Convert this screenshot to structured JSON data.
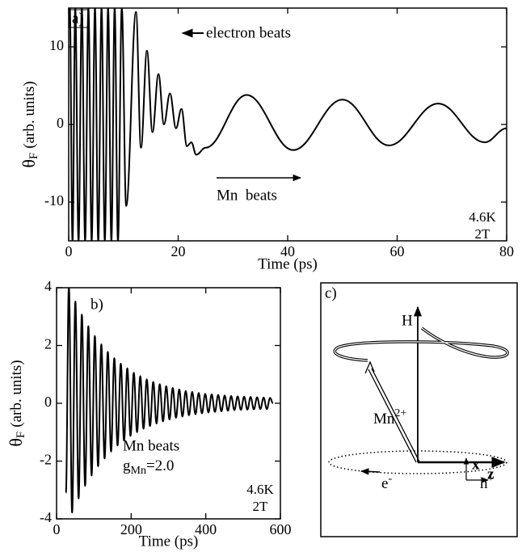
{
  "chart_data": [
    {
      "type": "line",
      "label": "a)",
      "color": "#000000",
      "xlabel": "Time (ps)",
      "ylabel": "θ",
      "ylabel_sub": "F",
      "ylabel_unit": "(arb. units)",
      "xlim": [
        0,
        80
      ],
      "ylim": [
        -15,
        15
      ],
      "xticks": [
        0,
        20,
        40,
        60,
        80
      ],
      "yticks": [
        -10,
        0,
        10
      ],
      "x": [
        0.2,
        0.7,
        1.2,
        1.8,
        2.4,
        3.0,
        3.6,
        4.2,
        4.8,
        5.4,
        6.0,
        6.6,
        7.2,
        7.8,
        8.4,
        9.0,
        9.7,
        10.5,
        12.3,
        13.2,
        14.3,
        15.3,
        16.4,
        17.4,
        18.5,
        19.6,
        20.6,
        21.6,
        22.4,
        23.3,
        25,
        32.5,
        41,
        50,
        58.5,
        67.5,
        76,
        80
      ],
      "values": [
        15,
        -15,
        15,
        -15,
        15,
        -15,
        15,
        -15,
        15,
        -15,
        15,
        -15,
        15,
        -15,
        15,
        -15,
        15,
        -10.5,
        14.5,
        -3,
        9.5,
        -1,
        6.5,
        0,
        4,
        -0.5,
        2,
        -2.8,
        -2.3,
        -3.9,
        -3,
        3.8,
        -3.3,
        3.2,
        -2.7,
        2.7,
        -2.3,
        -0.5
      ],
      "annotations": {
        "electron": "electron beats",
        "mn": "Mn  beats",
        "temp": "4.6K",
        "field": "2T"
      }
    },
    {
      "type": "line",
      "label": "b)",
      "color": "#000000",
      "xlabel": "Time (ps)",
      "ylabel": "θ",
      "ylabel_sub": "F",
      "ylabel_unit": "(arb. units)",
      "xlim": [
        0,
        600
      ],
      "ylim": [
        -4,
        4
      ],
      "xticks": [
        0,
        200,
        400,
        600
      ],
      "yticks": [
        -4,
        -2,
        0,
        2,
        4
      ],
      "x": [
        25,
        33,
        41.7,
        50.4,
        59.1,
        67.8,
        76.5,
        85.2,
        93.9,
        102.6,
        111.3,
        120,
        128.7,
        137.4,
        146.1,
        154.8,
        163.5,
        172.2,
        180.9,
        189.6,
        198.3,
        207,
        215.7,
        224.4,
        233.1,
        241.8,
        250.5,
        259.2,
        267.9,
        276.6,
        285.3,
        294,
        302.7,
        311.4,
        320.1,
        328.8,
        337.5,
        346.2,
        354.9,
        363.6,
        372.3,
        381,
        389.7,
        398.4,
        407.1,
        415.8,
        424.5,
        433.2,
        441.9,
        450.6,
        459.3,
        468,
        476.7,
        485.4,
        494.1,
        502.8,
        511.5,
        520.2,
        528.9,
        537.6,
        546.3,
        555,
        563.7,
        572.4,
        580
      ],
      "values": [
        -3.1,
        4.05,
        -3.78,
        3.52,
        -3.29,
        3.07,
        -2.86,
        2.67,
        -2.5,
        2.33,
        -2.18,
        2.04,
        -1.91,
        1.78,
        -1.67,
        1.56,
        -1.46,
        1.37,
        -1.29,
        1.21,
        -1.13,
        1.06,
        -1,
        0.94,
        -0.88,
        0.83,
        -0.79,
        0.74,
        -0.7,
        0.66,
        -0.63,
        0.59,
        -0.56,
        0.53,
        -0.5,
        0.48,
        -0.46,
        0.43,
        -0.42,
        0.4,
        -0.38,
        0.36,
        -0.35,
        0.33,
        -0.32,
        0.31,
        -0.3,
        0.29,
        -0.28,
        0.27,
        -0.26,
        0.25,
        -0.24,
        0.24,
        -0.23,
        0.23,
        -0.22,
        0.22,
        -0.21,
        0.21,
        -0.2,
        0.2,
        -0.2,
        0.19,
        0
      ],
      "annotations": {
        "mn": "Mn beats",
        "g": "g",
        "g_sub": "Mn",
        "g_val": "=2.0",
        "temp": "4.6K",
        "field": "2T"
      }
    }
  ],
  "diagram": {
    "label": "c)",
    "h_axis": "H",
    "mn": "Mn",
    "mn_sup": "2+",
    "x_axis": "x",
    "z_axis": "z",
    "electron": "e",
    "electron_sup": "-",
    "hole": "h",
    "hole_sup": "+"
  }
}
